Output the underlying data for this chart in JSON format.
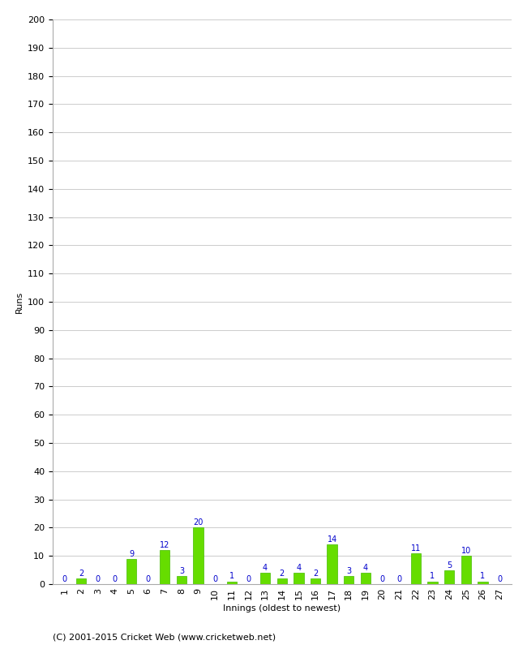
{
  "title": "",
  "xlabel": "Innings (oldest to newest)",
  "ylabel": "Runs",
  "values": [
    0,
    2,
    0,
    0,
    9,
    0,
    12,
    3,
    20,
    0,
    1,
    0,
    4,
    2,
    4,
    2,
    14,
    3,
    4,
    0,
    0,
    11,
    1,
    5,
    10,
    1,
    0
  ],
  "categories": [
    "1",
    "2",
    "3",
    "4",
    "5",
    "6",
    "7",
    "8",
    "9",
    "10",
    "11",
    "12",
    "13",
    "14",
    "15",
    "16",
    "17",
    "18",
    "19",
    "20",
    "21",
    "22",
    "23",
    "24",
    "25",
    "26",
    "27"
  ],
  "bar_color": "#66dd00",
  "bar_edge_color": "#44bb00",
  "label_color": "#0000cc",
  "grid_color": "#cccccc",
  "bg_color": "#ffffff",
  "ylim": [
    0,
    200
  ],
  "yticks": [
    0,
    10,
    20,
    30,
    40,
    50,
    60,
    70,
    80,
    90,
    100,
    110,
    120,
    130,
    140,
    150,
    160,
    170,
    180,
    190,
    200
  ],
  "footer": "(C) 2001-2015 Cricket Web (www.cricketweb.net)",
  "ylabel_fontsize": 8,
  "xlabel_fontsize": 8,
  "tick_fontsize": 8,
  "footer_fontsize": 8,
  "value_label_fontsize": 7
}
